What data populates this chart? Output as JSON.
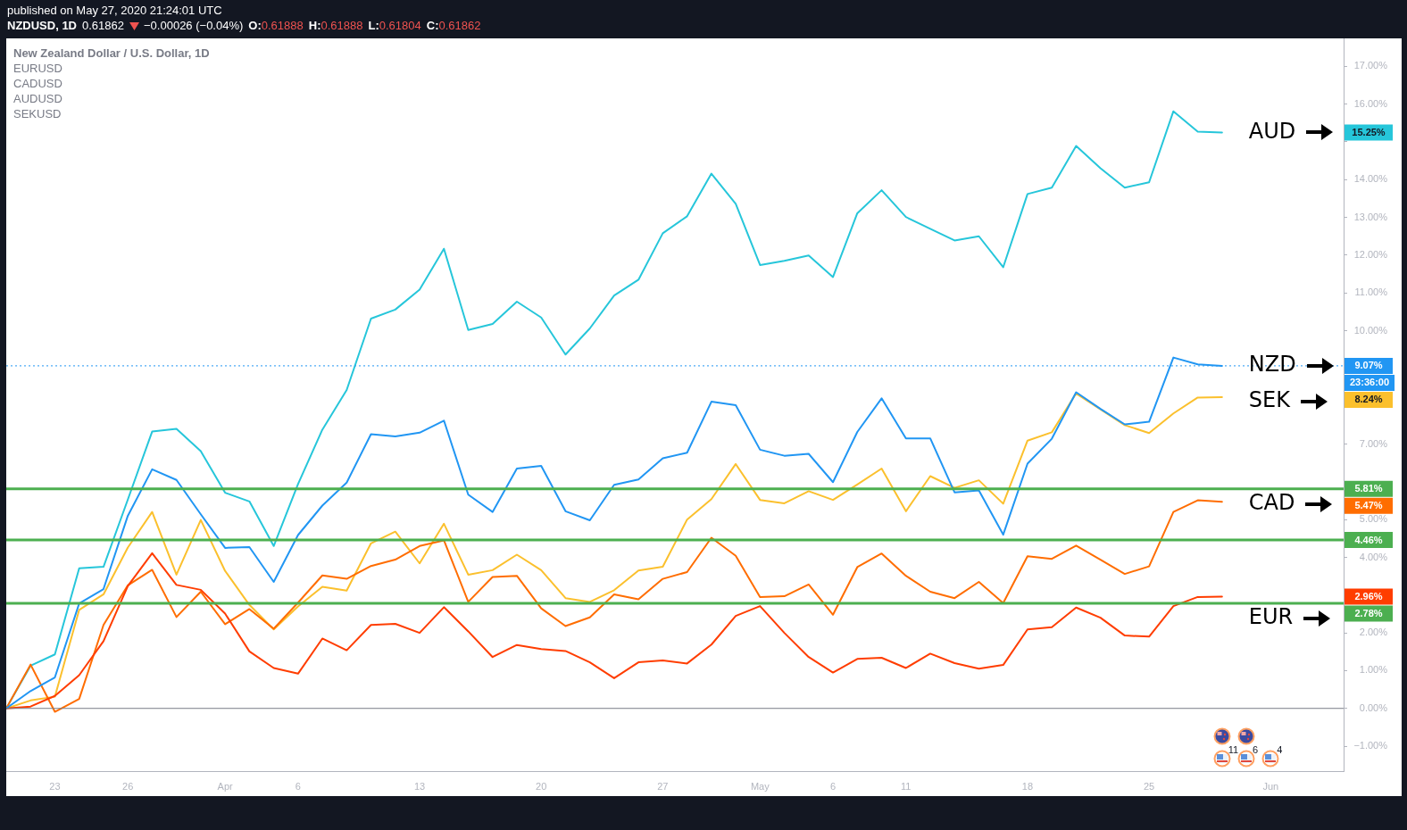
{
  "chart_data": {
    "type": "line",
    "categories": [
      null,
      null,
      "23",
      null,
      null,
      "26",
      null,
      null,
      null,
      "Apr",
      null,
      null,
      "6",
      null,
      null,
      null,
      null,
      "13",
      null,
      null,
      null,
      null,
      "20",
      null,
      null,
      null,
      null,
      "27",
      null,
      null,
      null,
      "May",
      null,
      null,
      "6",
      null,
      null,
      "11",
      null,
      null,
      null,
      null,
      "18",
      null,
      null,
      null,
      null,
      "25",
      null,
      null,
      null,
      null,
      "Jun",
      null,
      null,
      null
    ],
    "series": [
      {
        "name": "NZD",
        "color": "#2196f3",
        "values": [
          0,
          0.46,
          0.82,
          2.78,
          3.16,
          5.1,
          6.33,
          6.05,
          5.14,
          4.25,
          4.27,
          3.35,
          4.59,
          5.37,
          5.98,
          7.26,
          7.2,
          7.3,
          7.62,
          5.66,
          5.2,
          6.35,
          6.42,
          5.22,
          4.98,
          5.92,
          6.06,
          6.62,
          6.77,
          8.12,
          8.03,
          6.85,
          6.69,
          6.74,
          5.99,
          7.32,
          8.21,
          7.15,
          7.15,
          5.72,
          5.77,
          4.6,
          6.48,
          7.14,
          8.37,
          7.93,
          7.52,
          7.59,
          9.29,
          9.11,
          9.07,
          null,
          null,
          null,
          null,
          null
        ]
      },
      {
        "name": "EUR",
        "color": "#ff3d00",
        "values": [
          0,
          0.05,
          0.33,
          0.88,
          1.78,
          3.24,
          4.11,
          3.27,
          3.14,
          2.51,
          1.51,
          1.07,
          0.92,
          1.85,
          1.54,
          2.21,
          2.24,
          2.0,
          2.68,
          2.04,
          1.36,
          1.68,
          1.57,
          1.52,
          1.22,
          0.8,
          1.22,
          1.27,
          1.19,
          1.69,
          2.45,
          2.71,
          2.0,
          1.36,
          0.95,
          1.31,
          1.34,
          1.07,
          1.45,
          1.2,
          1.05,
          1.15,
          2.09,
          2.15,
          2.67,
          2.4,
          1.93,
          1.9,
          2.71,
          2.95,
          2.96,
          null,
          null,
          null,
          null,
          null
        ]
      },
      {
        "name": "CAD",
        "color": "#ff6d00",
        "values": [
          0,
          1.16,
          -0.09,
          0.25,
          2.21,
          3.26,
          3.67,
          2.42,
          3.09,
          2.23,
          2.63,
          2.11,
          2.8,
          3.52,
          3.43,
          3.77,
          3.94,
          4.3,
          4.45,
          2.82,
          3.48,
          3.51,
          2.65,
          2.18,
          2.41,
          3.02,
          2.89,
          3.43,
          3.61,
          4.52,
          4.04,
          2.95,
          2.97,
          3.28,
          2.48,
          3.74,
          4.1,
          3.51,
          3.09,
          2.92,
          3.35,
          2.79,
          4.03,
          3.96,
          4.31,
          3.94,
          3.56,
          3.76,
          5.2,
          5.51,
          5.47,
          null,
          null,
          null,
          null,
          null
        ]
      },
      {
        "name": "AUD",
        "color": "#26c6da",
        "values": [
          0,
          1.13,
          1.43,
          3.71,
          3.75,
          5.53,
          7.33,
          7.4,
          6.81,
          5.71,
          5.48,
          4.3,
          5.94,
          7.38,
          8.43,
          10.32,
          10.56,
          11.09,
          12.17,
          10.02,
          10.18,
          10.77,
          10.35,
          9.37,
          10.06,
          10.93,
          11.35,
          12.58,
          13.03,
          14.16,
          13.36,
          11.74,
          11.85,
          11.99,
          11.42,
          13.11,
          13.72,
          13.01,
          12.7,
          12.39,
          12.5,
          11.68,
          13.62,
          13.79,
          14.89,
          14.3,
          13.79,
          13.93,
          15.81,
          15.27,
          15.25,
          null,
          null,
          null,
          null,
          null
        ]
      },
      {
        "name": "SEK",
        "color": "#fbc02d",
        "values": [
          0,
          0.21,
          0.31,
          2.61,
          3.02,
          4.26,
          5.2,
          3.54,
          4.99,
          3.64,
          2.74,
          2.09,
          2.7,
          3.22,
          3.12,
          4.37,
          4.68,
          3.84,
          4.89,
          3.54,
          3.66,
          4.07,
          3.66,
          2.92,
          2.82,
          3.13,
          3.65,
          3.75,
          5.0,
          5.54,
          6.47,
          5.52,
          5.43,
          5.75,
          5.52,
          5.93,
          6.35,
          5.22,
          6.15,
          5.84,
          6.04,
          5.42,
          7.09,
          7.31,
          8.34,
          7.92,
          7.5,
          7.29,
          7.81,
          8.23,
          8.24,
          null,
          null,
          null,
          null,
          null
        ]
      }
    ],
    "ylim": [
      -1.66,
      17.74
    ],
    "yticks": [
      {
        "value": -1,
        "label": "−1.00%"
      },
      {
        "value": 0,
        "label": "0.00%"
      },
      {
        "value": 1,
        "label": "1.00%"
      },
      {
        "value": 2,
        "label": "2.00%"
      },
      {
        "value": 3,
        "label": null
      },
      {
        "value": 4,
        "label": "4.00%"
      },
      {
        "value": 5,
        "label": "5.00%"
      },
      {
        "value": 6,
        "label": null
      },
      {
        "value": 7,
        "label": "7.00%"
      },
      {
        "value": 8,
        "label": null
      },
      {
        "value": 9,
        "label": null
      },
      {
        "value": 10,
        "label": "10.00%"
      },
      {
        "value": 11,
        "label": "11.00%"
      },
      {
        "value": 12,
        "label": "12.00%"
      },
      {
        "value": 13,
        "label": "13.00%"
      },
      {
        "value": 14,
        "label": "14.00%"
      },
      {
        "value": 15,
        "label": null
      },
      {
        "value": 16,
        "label": "16.00%"
      },
      {
        "value": 17,
        "label": "17.00%"
      }
    ],
    "ref_lines": [
      {
        "axis": "y",
        "value": 0,
        "color": "#787b86"
      },
      {
        "axis": "y",
        "value": 9.07,
        "color": "#2196f3",
        "line_style": "dotted"
      },
      {
        "axis": "y",
        "value": 5.81,
        "label": "5.81%",
        "color": "#4caf50"
      },
      {
        "axis": "y",
        "value": 4.46,
        "label": "4.46%",
        "color": "#4caf50"
      },
      {
        "axis": "y",
        "value": 2.78,
        "label": "2.78%",
        "color": "#4caf50"
      }
    ],
    "annotations": [
      "published on May 27, 2020 21:24:01 UTC",
      "NZDUSD, 1D",
      "0.61862",
      "−0.00026 (−0.04%)",
      "O:0.61888",
      "H:0.61888",
      "L:0.61804",
      "C:0.61862",
      "New Zealand Dollar / U.S. Dollar, 1D",
      "EURUSD",
      "CADUSD",
      "AUDUSD",
      "SEKUSD",
      "9.07%",
      "2.96%",
      "5.47%",
      "15.25%",
      "8.24%",
      "23:36:00",
      "11",
      "6",
      "4"
    ]
  }
}
